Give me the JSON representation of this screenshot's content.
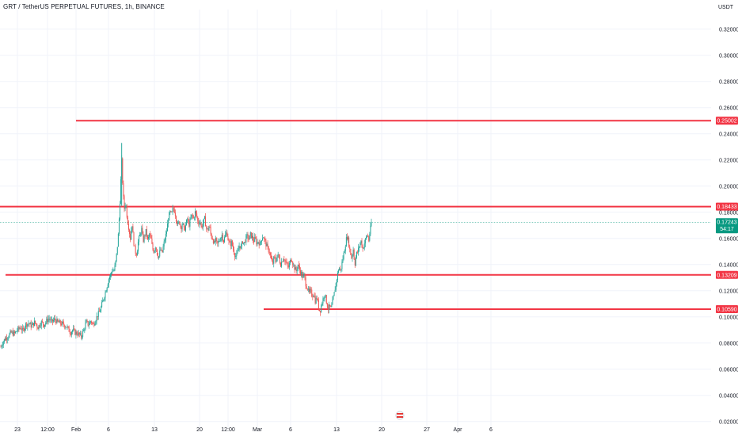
{
  "header": {
    "symbol_title": "GRT / TetherUS PERPETUAL FUTURES, 1h, BINANCE",
    "currency": "USDT"
  },
  "colors": {
    "up": "#26a69a",
    "down": "#ef5350",
    "level_line": "#f23645",
    "current_price_bg": "#089981",
    "grid": "#f0f3fa",
    "axis_text": "#131722"
  },
  "chart_data": {
    "type": "candlestick",
    "title": "GRT / TetherUS PERPETUAL FUTURES, 1h, BINANCE",
    "ylabel": "USDT",
    "ylim": [
      0.015,
      0.335
    ],
    "yticks": [
      "0.02000",
      "0.04000",
      "0.06000",
      "0.08000",
      "0.10000",
      "0.12000",
      "0.14000",
      "0.16000",
      "0.18000",
      "0.20000",
      "0.22000",
      "0.24000",
      "0.26000",
      "0.28000",
      "0.30000",
      "0.32000"
    ],
    "xticks": [
      "23",
      "12:00",
      "Feb",
      "6",
      "13",
      "20",
      "12:00",
      "Mar",
      "6",
      "13",
      "20",
      "27",
      "Apr",
      "6"
    ],
    "price_path": [
      [
        0.0,
        0.077
      ],
      [
        2,
        0.08
      ],
      [
        5,
        0.083
      ],
      [
        9,
        0.085
      ],
      [
        13,
        0.088
      ],
      [
        17,
        0.087
      ],
      [
        21,
        0.09
      ],
      [
        25,
        0.092
      ],
      [
        28,
        0.089
      ],
      [
        31,
        0.094
      ],
      [
        35,
        0.095
      ],
      [
        39,
        0.093
      ],
      [
        43,
        0.096
      ],
      [
        47,
        0.092
      ],
      [
        51,
        0.096
      ],
      [
        55,
        0.094
      ],
      [
        58,
        0.097
      ],
      [
        61,
        0.099
      ],
      [
        64,
        0.096
      ],
      [
        68,
        0.098
      ],
      [
        72,
        0.096
      ],
      [
        76,
        0.095
      ],
      [
        80,
        0.094
      ],
      [
        84,
        0.092
      ],
      [
        88,
        0.088
      ],
      [
        91,
        0.09
      ],
      [
        94,
        0.088
      ],
      [
        98,
        0.087
      ],
      [
        102,
        0.085
      ],
      [
        105,
        0.09
      ],
      [
        108,
        0.096
      ],
      [
        111,
        0.094
      ],
      [
        114,
        0.097
      ],
      [
        117,
        0.094
      ],
      [
        120,
        0.098
      ],
      [
        123,
        0.102
      ],
      [
        126,
        0.105
      ],
      [
        129,
        0.112
      ],
      [
        132,
        0.118
      ],
      [
        135,
        0.125
      ],
      [
        137,
        0.13
      ],
      [
        139,
        0.132
      ],
      [
        141,
        0.136
      ],
      [
        143,
        0.135
      ],
      [
        145,
        0.14
      ],
      [
        147,
        0.15
      ],
      [
        149,
        0.165
      ],
      [
        151,
        0.19
      ],
      [
        153,
        0.22
      ],
      [
        154,
        0.205
      ],
      [
        156,
        0.182
      ],
      [
        158,
        0.188
      ],
      [
        160,
        0.175
      ],
      [
        162,
        0.168
      ],
      [
        164,
        0.16
      ],
      [
        166,
        0.172
      ],
      [
        168,
        0.158
      ],
      [
        170,
        0.15
      ],
      [
        172,
        0.148
      ],
      [
        174,
        0.158
      ],
      [
        176,
        0.162
      ],
      [
        178,
        0.168
      ],
      [
        180,
        0.158
      ],
      [
        182,
        0.162
      ],
      [
        184,
        0.166
      ],
      [
        186,
        0.158
      ],
      [
        188,
        0.163
      ],
      [
        190,
        0.16
      ],
      [
        192,
        0.152
      ],
      [
        194,
        0.15
      ],
      [
        196,
        0.155
      ],
      [
        198,
        0.148
      ],
      [
        200,
        0.146
      ],
      [
        202,
        0.152
      ],
      [
        204,
        0.148
      ],
      [
        206,
        0.155
      ],
      [
        208,
        0.16
      ],
      [
        210,
        0.166
      ],
      [
        212,
        0.175
      ],
      [
        214,
        0.18
      ],
      [
        216,
        0.178
      ],
      [
        218,
        0.183
      ],
      [
        220,
        0.181
      ],
      [
        222,
        0.175
      ],
      [
        224,
        0.17
      ],
      [
        226,
        0.173
      ],
      [
        228,
        0.168
      ],
      [
        230,
        0.172
      ],
      [
        232,
        0.166
      ],
      [
        234,
        0.17
      ],
      [
        236,
        0.175
      ],
      [
        238,
        0.17
      ],
      [
        240,
        0.174
      ],
      [
        242,
        0.178
      ],
      [
        244,
        0.175
      ],
      [
        246,
        0.18
      ],
      [
        248,
        0.177
      ],
      [
        250,
        0.171
      ],
      [
        252,
        0.174
      ],
      [
        254,
        0.168
      ],
      [
        256,
        0.172
      ],
      [
        258,
        0.175
      ],
      [
        260,
        0.168
      ],
      [
        262,
        0.166
      ],
      [
        264,
        0.17
      ],
      [
        266,
        0.162
      ],
      [
        268,
        0.16
      ],
      [
        270,
        0.156
      ],
      [
        272,
        0.159
      ],
      [
        274,
        0.155
      ],
      [
        276,
        0.158
      ],
      [
        278,
        0.16
      ],
      [
        280,
        0.163
      ],
      [
        282,
        0.158
      ],
      [
        284,
        0.162
      ],
      [
        286,
        0.165
      ],
      [
        288,
        0.158
      ],
      [
        290,
        0.155
      ],
      [
        292,
        0.157
      ],
      [
        294,
        0.152
      ],
      [
        296,
        0.148
      ],
      [
        298,
        0.146
      ],
      [
        300,
        0.15
      ],
      [
        302,
        0.155
      ],
      [
        304,
        0.153
      ],
      [
        306,
        0.158
      ],
      [
        308,
        0.156
      ],
      [
        310,
        0.16
      ],
      [
        312,
        0.162
      ],
      [
        314,
        0.159
      ],
      [
        316,
        0.163
      ],
      [
        318,
        0.161
      ],
      [
        320,
        0.158
      ],
      [
        322,
        0.16
      ],
      [
        324,
        0.156
      ],
      [
        326,
        0.158
      ],
      [
        328,
        0.155
      ],
      [
        330,
        0.16
      ],
      [
        332,
        0.162
      ],
      [
        334,
        0.158
      ],
      [
        336,
        0.155
      ],
      [
        338,
        0.152
      ],
      [
        340,
        0.15
      ],
      [
        342,
        0.144
      ],
      [
        344,
        0.14
      ],
      [
        346,
        0.146
      ],
      [
        348,
        0.142
      ],
      [
        350,
        0.148
      ],
      [
        352,
        0.145
      ],
      [
        354,
        0.14
      ],
      [
        356,
        0.143
      ],
      [
        358,
        0.146
      ],
      [
        360,
        0.142
      ],
      [
        362,
        0.14
      ],
      [
        364,
        0.138
      ],
      [
        366,
        0.142
      ],
      [
        368,
        0.145
      ],
      [
        370,
        0.14
      ],
      [
        372,
        0.137
      ],
      [
        374,
        0.135
      ],
      [
        376,
        0.14
      ],
      [
        378,
        0.136
      ],
      [
        380,
        0.134
      ],
      [
        382,
        0.13
      ],
      [
        384,
        0.132
      ],
      [
        386,
        0.125
      ],
      [
        388,
        0.122
      ],
      [
        390,
        0.118
      ],
      [
        392,
        0.12
      ],
      [
        394,
        0.116
      ],
      [
        396,
        0.118
      ],
      [
        398,
        0.112
      ],
      [
        400,
        0.115
      ],
      [
        402,
        0.108
      ],
      [
        404,
        0.104
      ],
      [
        406,
        0.11
      ],
      [
        408,
        0.114
      ],
      [
        410,
        0.118
      ],
      [
        412,
        0.112
      ],
      [
        414,
        0.106
      ],
      [
        416,
        0.108
      ],
      [
        418,
        0.106
      ],
      [
        420,
        0.112
      ],
      [
        422,
        0.118
      ],
      [
        424,
        0.125
      ],
      [
        426,
        0.132
      ],
      [
        428,
        0.138
      ],
      [
        430,
        0.135
      ],
      [
        432,
        0.142
      ],
      [
        434,
        0.148
      ],
      [
        436,
        0.155
      ],
      [
        438,
        0.162
      ],
      [
        440,
        0.158
      ],
      [
        442,
        0.15
      ],
      [
        444,
        0.145
      ],
      [
        446,
        0.152
      ],
      [
        448,
        0.14
      ],
      [
        450,
        0.148
      ],
      [
        452,
        0.15
      ],
      [
        454,
        0.155
      ],
      [
        456,
        0.158
      ],
      [
        458,
        0.152
      ],
      [
        460,
        0.156
      ],
      [
        462,
        0.16
      ],
      [
        464,
        0.163
      ],
      [
        466,
        0.158
      ],
      [
        467,
        0.165
      ],
      [
        468,
        0.168
      ],
      [
        469,
        0.1724
      ]
    ],
    "horizontal_levels": [
      {
        "value": 0.25002,
        "label": "0.25002"
      },
      {
        "value": 0.18433,
        "label": "0.18433"
      },
      {
        "value": 0.13209,
        "label": "0.13209"
      },
      {
        "value": 0.1059,
        "label": "0.10590"
      }
    ],
    "current_price": {
      "value": 0.17243,
      "label": "0.17243",
      "countdown": "54:17"
    },
    "grid": true,
    "legend": "none"
  }
}
